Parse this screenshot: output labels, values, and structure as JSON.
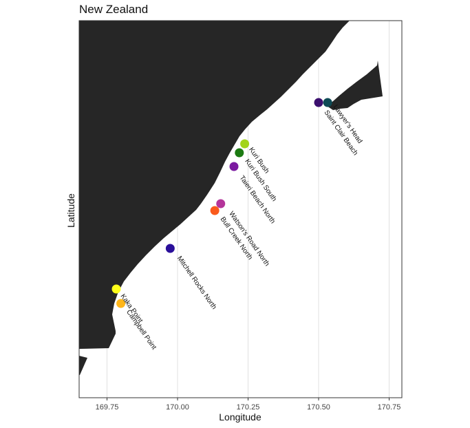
{
  "title": "New Zealand",
  "x_axis_title": "Longitude",
  "y_axis_title": "Latitude",
  "land_color": "#262626",
  "grid_color": "#e0e0e0",
  "x_ticks": [
    {
      "value": 169.75,
      "label": "169.75"
    },
    {
      "value": 170.0,
      "label": "170.00"
    },
    {
      "value": 170.25,
      "label": "170.25"
    },
    {
      "value": 170.5,
      "label": "170.50"
    },
    {
      "value": 170.75,
      "label": "170.75"
    }
  ],
  "x_range": [
    169.654,
    169.807
  ],
  "sites": [
    {
      "name": "Lawyer's Head",
      "lon": 170.532,
      "color": "#0e4a55"
    },
    {
      "name": "Saint Clair Beach",
      "lon": 170.5,
      "color": "#3b0f6e"
    },
    {
      "name": "Kuri Bush",
      "lon": 170.238,
      "color": "#a2d419"
    },
    {
      "name": "Kuri Bush South",
      "lon": 170.219,
      "color": "#1c7a12"
    },
    {
      "name": "Taieri Beach North",
      "lon": 170.2,
      "color": "#7b1aa0"
    },
    {
      "name": "Watson's Road North",
      "lon": 170.153,
      "color": "#b4359a"
    },
    {
      "name": "Bull Creek North",
      "lon": 170.132,
      "color": "#fa5a1c"
    },
    {
      "name": "Mitchell Rocks North",
      "lon": 169.974,
      "color": "#2a0f9a"
    },
    {
      "name": "Kaka Point",
      "lon": 169.783,
      "color": "#ffff1a"
    },
    {
      "name": "Campbell Point",
      "lon": 169.799,
      "color": "#ffb61a"
    }
  ]
}
